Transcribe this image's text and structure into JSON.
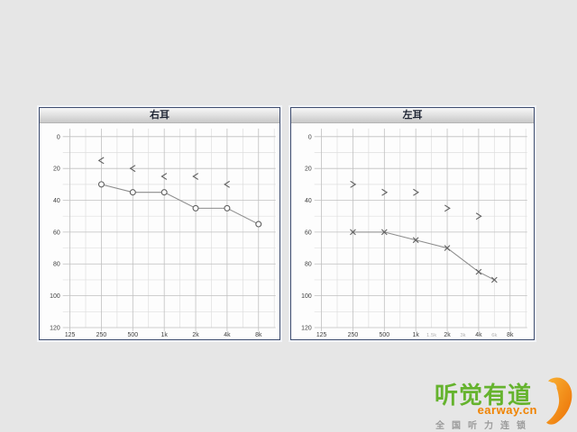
{
  "panels_note": "audiogram report, hearing level dB vs frequency Hz",
  "chart_data": [
    {
      "type": "line",
      "title": "右耳",
      "ear": "right",
      "xlabel": "",
      "ylabel": "",
      "x_major_labels": [
        "125",
        "250",
        "500",
        "1k",
        "2k",
        "4k",
        "8k"
      ],
      "x_minor_labels": [],
      "y_ticks": [
        "0",
        "20",
        "40",
        "60",
        "80",
        "100",
        "120"
      ],
      "ylim": [
        0,
        120
      ],
      "y_inverted": true,
      "grid": true,
      "series": [
        {
          "name": "air-conduction",
          "marker": "circle",
          "connected": true,
          "points": [
            {
              "freq": "250",
              "db": 30
            },
            {
              "freq": "500",
              "db": 35
            },
            {
              "freq": "1k",
              "db": 35
            },
            {
              "freq": "2k",
              "db": 45
            },
            {
              "freq": "4k",
              "db": 45
            },
            {
              "freq": "8k",
              "db": 55
            }
          ]
        },
        {
          "name": "bone-conduction",
          "marker": "<",
          "connected": false,
          "points": [
            {
              "freq": "250",
              "db": 15
            },
            {
              "freq": "500",
              "db": 20
            },
            {
              "freq": "1k",
              "db": 25
            },
            {
              "freq": "2k",
              "db": 25
            },
            {
              "freq": "4k",
              "db": 30
            }
          ]
        }
      ]
    },
    {
      "type": "line",
      "title": "左耳",
      "ear": "left",
      "xlabel": "",
      "ylabel": "",
      "x_major_labels": [
        "125",
        "250",
        "500",
        "1k",
        "2k",
        "4k",
        "8k"
      ],
      "x_minor_labels": [
        "1.5k",
        "3k",
        "6k"
      ],
      "y_ticks": [
        "0",
        "20",
        "40",
        "60",
        "80",
        "100",
        "120"
      ],
      "ylim": [
        0,
        120
      ],
      "y_inverted": true,
      "grid": true,
      "series": [
        {
          "name": "air-conduction",
          "marker": "x",
          "connected": true,
          "points": [
            {
              "freq": "250",
              "db": 60
            },
            {
              "freq": "500",
              "db": 60
            },
            {
              "freq": "1k",
              "db": 65
            },
            {
              "freq": "2k",
              "db": 70
            },
            {
              "freq": "4k",
              "db": 85
            },
            {
              "freq": "6k",
              "db": 90
            }
          ]
        },
        {
          "name": "bone-conduction",
          "marker": ">",
          "connected": false,
          "points": [
            {
              "freq": "250",
              "db": 30
            },
            {
              "freq": "500",
              "db": 35
            },
            {
              "freq": "1k",
              "db": 35
            },
            {
              "freq": "2k",
              "db": 45
            },
            {
              "freq": "4k",
              "db": 50
            }
          ]
        }
      ]
    }
  ],
  "logo": {
    "brand": "听觉有道",
    "domain": "earway.cn",
    "slogan": "全国听力连锁"
  },
  "colors": {
    "background": "#e6e6e6",
    "panel_border": "#3d4c6f",
    "header_text": "#1d2433",
    "chart_bg": "#fdfdfd",
    "grid_major": "#c0c0c0",
    "grid_minor": "#dedede",
    "axis_label": "#3c3c3c",
    "axis_label_faint": "#b2b2b2",
    "curve": "#8c8c8c",
    "marker": "#5f5f5f",
    "logo_green": "#65b32e",
    "logo_orange": "#f08300",
    "logo_gray": "#9b9b9b",
    "swoosh_light": "#f9b233",
    "swoosh_dark": "#ec6f05"
  }
}
